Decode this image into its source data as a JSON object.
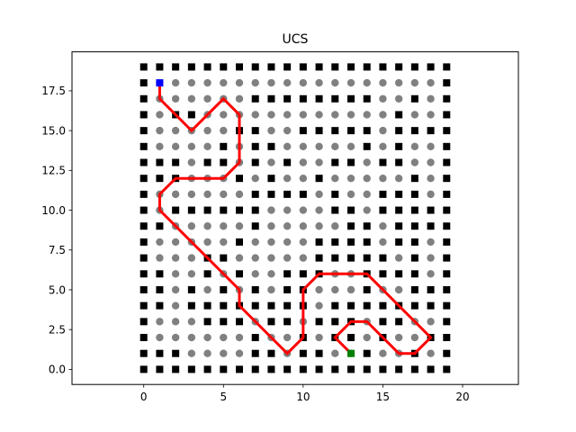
{
  "chart_data": {
    "type": "scatter",
    "title": "UCS",
    "xlabel": "",
    "ylabel": "",
    "xlim": [
      -4.5,
      23.5
    ],
    "ylim": [
      -0.95,
      19.95
    ],
    "xticks": [
      "0",
      "5",
      "10",
      "15",
      "20"
    ],
    "xtick_values": [
      0,
      5,
      10,
      15,
      20
    ],
    "yticks": [
      "0.0",
      "2.5",
      "5.0",
      "7.5",
      "10.0",
      "12.5",
      "15.0",
      "17.5"
    ],
    "ytick_values": [
      0,
      2.5,
      5,
      7.5,
      10,
      12.5,
      15,
      17.5
    ],
    "grid": false,
    "grid_size": [
      20,
      20
    ],
    "colors": {
      "obstacle": "#000000",
      "free": "#808080",
      "path": "#ff0000",
      "start": "#0000ff",
      "goal": "#008000"
    },
    "obstacles": [
      [
        7,
        17
      ],
      [
        8,
        17
      ],
      [
        9,
        17
      ],
      [
        10,
        17
      ],
      [
        11,
        17
      ],
      [
        12,
        17
      ],
      [
        13,
        17
      ],
      [
        14,
        17
      ],
      [
        17,
        17
      ],
      [
        2,
        16
      ],
      [
        3,
        16
      ],
      [
        16,
        16
      ],
      [
        6,
        15
      ],
      [
        7,
        15
      ],
      [
        10,
        15
      ],
      [
        11,
        15
      ],
      [
        12,
        15
      ],
      [
        13,
        15
      ],
      [
        14,
        15
      ],
      [
        16,
        15
      ],
      [
        17,
        15
      ],
      [
        18,
        15
      ],
      [
        5,
        14
      ],
      [
        7,
        14
      ],
      [
        8,
        14
      ],
      [
        14,
        14
      ],
      [
        16,
        14
      ],
      [
        1,
        13
      ],
      [
        2,
        13
      ],
      [
        4,
        13
      ],
      [
        5,
        13
      ],
      [
        7,
        13
      ],
      [
        9,
        13
      ],
      [
        12,
        13
      ],
      [
        13,
        13
      ],
      [
        15,
        13
      ],
      [
        16,
        13
      ],
      [
        1,
        12
      ],
      [
        2,
        12
      ],
      [
        6,
        12
      ],
      [
        8,
        12
      ],
      [
        11,
        12
      ],
      [
        17,
        12
      ],
      [
        7,
        11
      ],
      [
        8,
        11
      ],
      [
        9,
        11
      ],
      [
        10,
        11
      ],
      [
        12,
        11
      ],
      [
        15,
        11
      ],
      [
        16,
        11
      ],
      [
        17,
        11
      ],
      [
        2,
        10
      ],
      [
        3,
        10
      ],
      [
        4,
        10
      ],
      [
        5,
        10
      ],
      [
        6,
        10
      ],
      [
        7,
        10
      ],
      [
        12,
        10
      ],
      [
        13,
        10
      ],
      [
        15,
        10
      ],
      [
        16,
        10
      ],
      [
        17,
        10
      ],
      [
        18,
        10
      ],
      [
        1,
        9
      ],
      [
        7,
        9
      ],
      [
        13,
        9
      ],
      [
        14,
        9
      ],
      [
        16,
        9
      ],
      [
        17,
        9
      ],
      [
        18,
        9
      ],
      [
        6,
        8
      ],
      [
        11,
        8
      ],
      [
        12,
        8
      ],
      [
        13,
        8
      ],
      [
        14,
        8
      ],
      [
        16,
        8
      ],
      [
        17,
        8
      ],
      [
        4,
        7
      ],
      [
        5,
        7
      ],
      [
        11,
        7
      ],
      [
        12,
        7
      ],
      [
        13,
        7
      ],
      [
        14,
        7
      ],
      [
        15,
        7
      ],
      [
        17,
        7
      ],
      [
        1,
        6
      ],
      [
        4,
        6
      ],
      [
        6,
        6
      ],
      [
        9,
        6
      ],
      [
        10,
        6
      ],
      [
        11,
        6
      ],
      [
        14,
        6
      ],
      [
        15,
        6
      ],
      [
        16,
        6
      ],
      [
        17,
        6
      ],
      [
        1,
        5
      ],
      [
        3,
        5
      ],
      [
        5,
        5
      ],
      [
        7,
        5
      ],
      [
        9,
        5
      ],
      [
        10,
        5
      ],
      [
        14,
        5
      ],
      [
        17,
        5
      ],
      [
        18,
        5
      ],
      [
        1,
        4
      ],
      [
        3,
        4
      ],
      [
        4,
        4
      ],
      [
        5,
        4
      ],
      [
        6,
        4
      ],
      [
        7,
        4
      ],
      [
        8,
        4
      ],
      [
        9,
        4
      ],
      [
        10,
        4
      ],
      [
        12,
        4
      ],
      [
        13,
        4
      ],
      [
        14,
        4
      ],
      [
        15,
        4
      ],
      [
        16,
        4
      ],
      [
        17,
        4
      ],
      [
        18,
        4
      ],
      [
        4,
        3
      ],
      [
        5,
        3
      ],
      [
        6,
        3
      ],
      [
        8,
        3
      ],
      [
        9,
        3
      ],
      [
        11,
        3
      ],
      [
        12,
        3
      ],
      [
        13,
        3
      ],
      [
        15,
        3
      ],
      [
        16,
        3
      ],
      [
        7,
        2
      ],
      [
        10,
        2
      ],
      [
        12,
        2
      ],
      [
        13,
        2
      ],
      [
        15,
        2
      ],
      [
        18,
        2
      ],
      [
        1,
        1
      ],
      [
        2,
        1
      ],
      [
        7,
        1
      ],
      [
        8,
        1
      ],
      [
        10,
        1
      ],
      [
        11,
        1
      ],
      [
        14,
        1
      ],
      [
        17,
        1
      ],
      [
        11,
        0
      ],
      [
        12,
        0
      ],
      [
        14,
        0
      ],
      [
        15,
        0
      ],
      [
        16,
        0
      ],
      [
        17,
        0
      ],
      [
        18,
        0
      ]
    ],
    "start": [
      1,
      18
    ],
    "goal": [
      13,
      1
    ],
    "path": [
      [
        1,
        18
      ],
      [
        1,
        17
      ],
      [
        2,
        16
      ],
      [
        3,
        15
      ],
      [
        4,
        16
      ],
      [
        5,
        17
      ],
      [
        6,
        16
      ],
      [
        6,
        15
      ],
      [
        6,
        14
      ],
      [
        6,
        13
      ],
      [
        5,
        12
      ],
      [
        4,
        12
      ],
      [
        3,
        12
      ],
      [
        2,
        12
      ],
      [
        1,
        11
      ],
      [
        1,
        10
      ],
      [
        2,
        9
      ],
      [
        3,
        8
      ],
      [
        4,
        7
      ],
      [
        5,
        6
      ],
      [
        6,
        5
      ],
      [
        6,
        4
      ],
      [
        7,
        3
      ],
      [
        8,
        2
      ],
      [
        9,
        1
      ],
      [
        10,
        2
      ],
      [
        10,
        3
      ],
      [
        10,
        4
      ],
      [
        10,
        5
      ],
      [
        11,
        6
      ],
      [
        12,
        6
      ],
      [
        13,
        6
      ],
      [
        14,
        6
      ],
      [
        15,
        5
      ],
      [
        16,
        4
      ],
      [
        17,
        3
      ],
      [
        18,
        2
      ],
      [
        17,
        1
      ],
      [
        16,
        1
      ],
      [
        15,
        2
      ],
      [
        14,
        3
      ],
      [
        13,
        3
      ],
      [
        12,
        2
      ],
      [
        13,
        1
      ]
    ]
  }
}
